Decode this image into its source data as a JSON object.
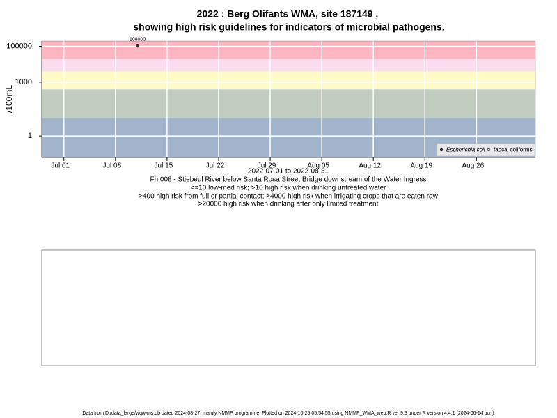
{
  "chart_data": {
    "type": "scatter",
    "title": [
      "2022 : Berg Olifants WMA, site 187149 ,",
      "showing high risk guidelines for indicators of microbial pathogens."
    ],
    "y_label": "/100mL",
    "x_label": "2022-07-01 to 2022-08-31",
    "notes": [
      "Fh 008 - Stiebeul River below Santa Rosa Street Bridge downstream of the Water Ingress",
      "<=10 low-med risk; >10 high risk when drinking untreated water",
      ">400 high risk from full or partial contact; >4000 high risk when irrigating crops that are eaten raw",
      ">20000 high risk when drinking after only limited treatment"
    ],
    "footer": "Data from D:/data_large/wq/wms.db dated 2024-08-27, mainly NMMP programme. Plotted on 2024-10-25 05:54:55 using NMMP_WMA_web.R ver 9.3 under R version 4.4.1 (2024-06-14 ucrt)",
    "log_y": true,
    "grid": true,
    "legend": "bottom-right",
    "xlim": [
      "2022-06-28",
      "2022-09-03"
    ],
    "xticks": [
      {
        "value": "2022-07-01",
        "label": "Jul 01"
      },
      {
        "value": "2022-07-08",
        "label": "Jul 08"
      },
      {
        "value": "2022-07-15",
        "label": "Jul 15"
      },
      {
        "value": "2022-07-22",
        "label": "Jul 22"
      },
      {
        "value": "2022-07-29",
        "label": "Jul 29"
      },
      {
        "value": "2022-08-05",
        "label": "Aug 05"
      },
      {
        "value": "2022-08-12",
        "label": "Aug 12"
      },
      {
        "value": "2022-08-19",
        "label": "Aug 19"
      },
      {
        "value": "2022-08-26",
        "label": "Aug 26"
      }
    ],
    "ylim": [
      0.063,
      195000
    ],
    "yticks": [
      1,
      1000,
      100000
    ],
    "risk_thresholds": [
      10,
      400,
      4000,
      20000
    ],
    "band_colors": [
      "#a2b4cc",
      "#c1cbbf",
      "#fffbc8",
      "#fbdcef",
      "#ffb6c1"
    ],
    "series": [
      {
        "name": "Escherichia coli",
        "color": "#333333",
        "x": [
          "2022-07-11"
        ],
        "values": [
          108000
        ],
        "value_labels": [
          "108000"
        ]
      },
      {
        "name": "faecal coliforms",
        "color": "#333333",
        "x": [],
        "values": []
      }
    ]
  }
}
